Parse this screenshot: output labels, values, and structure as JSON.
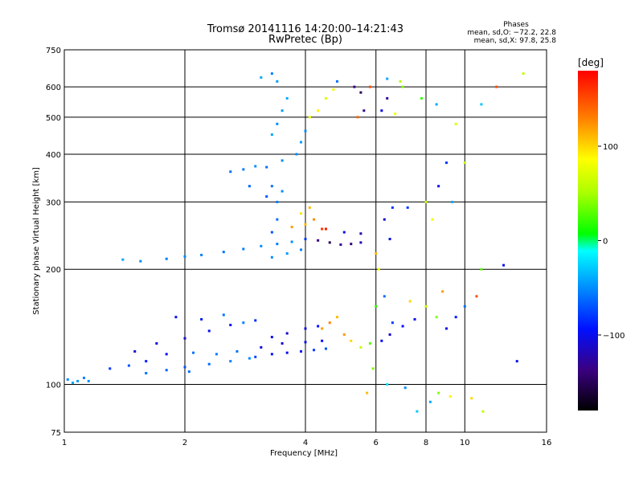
{
  "chart_data": {
    "type": "scatter",
    "title": "Tromsø 20141116 14:20:00–14:21:43",
    "subtitle": "RwPretec (Bp)",
    "stats": {
      "header": "Phases",
      "line1": "mean, sd,O: −72.2, 22.8",
      "line2": "mean, sd,X:  97.8, 25.8"
    },
    "xlabel": "Frequency [MHz]",
    "ylabel": "Stationary phase Virtual Height [km]",
    "x_scale": "log",
    "y_scale": "log",
    "xlim": [
      1,
      16
    ],
    "ylim": [
      75,
      750
    ],
    "x_ticks": [
      1,
      2,
      4,
      6,
      8,
      10,
      16
    ],
    "x_ticklabels": [
      "1",
      "2",
      "4",
      "6",
      "8",
      "10",
      "16"
    ],
    "y_ticks": [
      75,
      100,
      200,
      300,
      400,
      500,
      600,
      750
    ],
    "y_ticklabels": [
      "75",
      "100",
      "200",
      "300",
      "400",
      "500",
      "600",
      "750"
    ],
    "grid": true,
    "colorbar": {
      "label": "[deg]",
      "range": [
        -180,
        180
      ],
      "ticks": [
        100,
        0,
        -100
      ],
      "ticklabels": [
        "100",
        "0",
        "−100"
      ]
    },
    "series": [
      {
        "values": [
          [
            1.02,
            103,
            -50
          ],
          [
            1.05,
            101,
            -40
          ],
          [
            1.08,
            102,
            -45
          ],
          [
            1.12,
            104,
            -55
          ],
          [
            1.15,
            102,
            -48
          ],
          [
            1.6,
            107,
            -60
          ],
          [
            1.8,
            109,
            -65
          ],
          [
            2.0,
            111,
            -70
          ],
          [
            2.3,
            113,
            -60
          ],
          [
            2.6,
            115,
            -55
          ],
          [
            2.9,
            117,
            -50
          ],
          [
            3.0,
            118,
            -75
          ],
          [
            3.3,
            120,
            -95
          ],
          [
            3.6,
            121,
            -100
          ],
          [
            3.9,
            122,
            -90
          ],
          [
            4.2,
            123,
            -80
          ],
          [
            4.5,
            124,
            -70
          ],
          [
            1.6,
            115,
            -90
          ],
          [
            1.8,
            120,
            -95
          ],
          [
            2.1,
            121,
            -60
          ],
          [
            2.4,
            120,
            -55
          ],
          [
            2.7,
            122,
            -60
          ],
          [
            3.1,
            125,
            -105
          ],
          [
            3.5,
            128,
            -110
          ],
          [
            4.0,
            129,
            -100
          ],
          [
            4.4,
            130,
            -95
          ],
          [
            1.5,
            122,
            -105
          ],
          [
            1.7,
            128,
            -100
          ],
          [
            2.0,
            132,
            -110
          ],
          [
            2.3,
            138,
            -100
          ],
          [
            2.6,
            143,
            -95
          ],
          [
            3.3,
            133,
            -100
          ],
          [
            3.6,
            136,
            -110
          ],
          [
            4.0,
            140,
            -105
          ],
          [
            4.3,
            142,
            -95
          ],
          [
            1.9,
            150,
            -95
          ],
          [
            2.2,
            148,
            -90
          ],
          [
            2.5,
            152,
            -60
          ],
          [
            2.8,
            145,
            -55
          ],
          [
            3.0,
            147,
            -85
          ],
          [
            4.4,
            140,
            120
          ],
          [
            4.6,
            145,
            130
          ],
          [
            4.8,
            150,
            110
          ],
          [
            5.0,
            135,
            120
          ],
          [
            5.2,
            130,
            100
          ],
          [
            5.5,
            125,
            60
          ],
          [
            5.8,
            128,
            30
          ],
          [
            6.2,
            130,
            -100
          ],
          [
            6.5,
            135,
            -110
          ],
          [
            7.0,
            142,
            -95
          ],
          [
            7.5,
            148,
            -100
          ],
          [
            8.0,
            160,
            60
          ],
          [
            8.5,
            150,
            40
          ],
          [
            9.0,
            140,
            -100
          ],
          [
            9.5,
            150,
            -90
          ],
          [
            6.0,
            160,
            20
          ],
          [
            6.3,
            170,
            -60
          ],
          [
            6.6,
            145,
            -80
          ],
          [
            7.3,
            165,
            100
          ],
          [
            8.8,
            175,
            120
          ],
          [
            1.3,
            110,
            -80
          ],
          [
            1.45,
            112,
            -70
          ],
          [
            2.05,
            108,
            -60
          ],
          [
            1.4,
            212,
            -40
          ],
          [
            1.55,
            210,
            -50
          ],
          [
            1.8,
            213,
            -55
          ],
          [
            2.0,
            216,
            -50
          ],
          [
            2.2,
            218,
            -55
          ],
          [
            2.5,
            222,
            -60
          ],
          [
            2.8,
            226,
            -55
          ],
          [
            3.1,
            230,
            -50
          ],
          [
            3.4,
            233,
            -55
          ],
          [
            3.7,
            236,
            -50
          ],
          [
            4.0,
            240,
            -80
          ],
          [
            4.3,
            238,
            -140
          ],
          [
            4.6,
            235,
            -150
          ],
          [
            4.9,
            232,
            -130
          ],
          [
            5.2,
            233,
            -140
          ],
          [
            5.5,
            235,
            -120
          ],
          [
            3.3,
            215,
            -50
          ],
          [
            3.6,
            220,
            -45
          ],
          [
            3.9,
            225,
            -55
          ],
          [
            3.7,
            258,
            120
          ],
          [
            4.0,
            262,
            110
          ],
          [
            4.2,
            270,
            125
          ],
          [
            3.9,
            280,
            95
          ],
          [
            4.1,
            290,
            110
          ],
          [
            4.4,
            255,
            160
          ],
          [
            3.3,
            250,
            -70
          ],
          [
            3.4,
            270,
            -60
          ],
          [
            3.4,
            300,
            -55
          ],
          [
            3.3,
            330,
            -60
          ],
          [
            3.5,
            320,
            -50
          ],
          [
            4.5,
            255,
            170
          ],
          [
            5.0,
            250,
            -100
          ],
          [
            5.5,
            248,
            -120
          ],
          [
            6.3,
            270,
            -110
          ],
          [
            6.6,
            290,
            -80
          ],
          [
            2.6,
            360,
            -60
          ],
          [
            2.8,
            365,
            -55
          ],
          [
            3.0,
            372,
            -50
          ],
          [
            3.2,
            370,
            -60
          ],
          [
            3.5,
            385,
            -50
          ],
          [
            2.9,
            330,
            -65
          ],
          [
            3.2,
            310,
            -70
          ],
          [
            3.3,
            450,
            -40
          ],
          [
            3.4,
            480,
            -50
          ],
          [
            3.5,
            520,
            -45
          ],
          [
            3.6,
            560,
            -40
          ],
          [
            3.4,
            620,
            -45
          ],
          [
            3.3,
            650,
            -55
          ],
          [
            3.1,
            635,
            -40
          ],
          [
            3.8,
            400,
            -50
          ],
          [
            3.9,
            430,
            -45
          ],
          [
            4.0,
            460,
            -50
          ],
          [
            4.1,
            500,
            80
          ],
          [
            4.3,
            520,
            90
          ],
          [
            4.5,
            560,
            70
          ],
          [
            4.7,
            590,
            80
          ],
          [
            4.8,
            620,
            -60
          ],
          [
            5.3,
            600,
            -140
          ],
          [
            5.5,
            580,
            -150
          ],
          [
            5.6,
            520,
            -130
          ],
          [
            5.8,
            600,
            150
          ],
          [
            5.4,
            500,
            140
          ],
          [
            6.2,
            520,
            -100
          ],
          [
            6.4,
            560,
            -130
          ],
          [
            6.7,
            510,
            80
          ],
          [
            7.0,
            600,
            40
          ],
          [
            6.4,
            630,
            -40
          ],
          [
            6.9,
            620,
            60
          ],
          [
            7.8,
            560,
            20
          ],
          [
            8.5,
            540,
            -40
          ],
          [
            9.5,
            480,
            70
          ],
          [
            8.0,
            300,
            60
          ],
          [
            8.3,
            270,
            80
          ],
          [
            8.6,
            330,
            -100
          ],
          [
            9.0,
            380,
            -80
          ],
          [
            9.3,
            300,
            -40
          ],
          [
            10.0,
            380,
            60
          ],
          [
            11.0,
            540,
            -30
          ],
          [
            12.0,
            600,
            150
          ],
          [
            14.0,
            650,
            60
          ],
          [
            6.0,
            220,
            110
          ],
          [
            6.1,
            200,
            80
          ],
          [
            6.5,
            240,
            -100
          ],
          [
            7.2,
            290,
            -80
          ],
          [
            8.2,
            90,
            -40
          ],
          [
            8.6,
            95,
            40
          ],
          [
            9.2,
            93,
            90
          ],
          [
            10.4,
            92,
            100
          ],
          [
            11.1,
            85,
            60
          ],
          [
            6.4,
            100,
            -20
          ],
          [
            7.1,
            98,
            -50
          ],
          [
            7.6,
            85,
            -30
          ],
          [
            5.7,
            95,
            110
          ],
          [
            5.9,
            110,
            40
          ],
          [
            12.5,
            205,
            -100
          ],
          [
            13.5,
            115,
            -100
          ],
          [
            11.0,
            200,
            30
          ],
          [
            10.7,
            170,
            150
          ],
          [
            10.0,
            160,
            -60
          ]
        ]
      }
    ]
  }
}
